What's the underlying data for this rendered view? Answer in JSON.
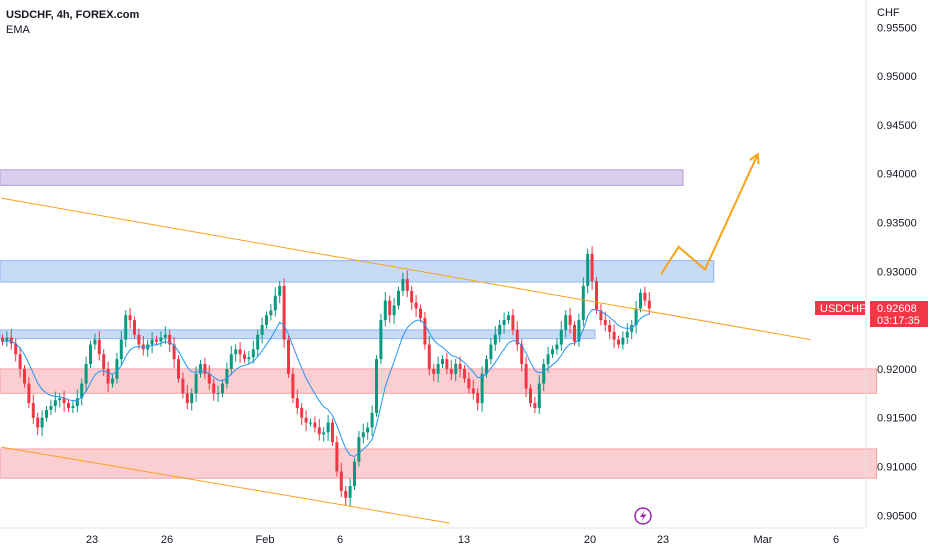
{
  "legend": {
    "symbol": "USDCHF, 4h, FOREX.com",
    "indicator": "EMA"
  },
  "currency": "CHF",
  "price_badge": {
    "symbol": "USDCHF",
    "price": "0.92608",
    "countdown": "03:17:35",
    "color": "#f23645"
  },
  "colors": {
    "bull": "#089981",
    "bear": "#f23645",
    "ema": "#2196f3",
    "trendline": "#f7a21b"
  },
  "chart_data": {
    "type": "candlestick",
    "symbol": "USDCHF",
    "timeframe": "4h",
    "y_range": [
      0.9037,
      0.9578
    ],
    "y_ticks": [
      "0.90500",
      "0.91000",
      "0.91500",
      "0.92000",
      "0.92500",
      "0.93000",
      "0.93500",
      "0.94000",
      "0.94500",
      "0.95000",
      "0.95500"
    ],
    "x_labels": [
      "23",
      "26",
      "Feb",
      "6",
      "13",
      "20",
      "23",
      "Mar",
      "6"
    ],
    "candles_close": [
      0.9228,
      0.9232,
      0.9226,
      0.9215,
      0.92,
      0.9185,
      0.9165,
      0.915,
      0.914,
      0.915,
      0.9158,
      0.9162,
      0.9168,
      0.917,
      0.9165,
      0.916,
      0.9162,
      0.917,
      0.9185,
      0.9205,
      0.9225,
      0.923,
      0.9215,
      0.92,
      0.9185,
      0.919,
      0.921,
      0.923,
      0.9255,
      0.925,
      0.9235,
      0.9225,
      0.922,
      0.9225,
      0.923,
      0.9228,
      0.9232,
      0.9235,
      0.9225,
      0.921,
      0.919,
      0.9175,
      0.9165,
      0.9175,
      0.9195,
      0.9205,
      0.9195,
      0.9185,
      0.9175,
      0.9175,
      0.9185,
      0.92,
      0.9215,
      0.922,
      0.9215,
      0.921,
      0.9212,
      0.922,
      0.9235,
      0.9245,
      0.9255,
      0.926,
      0.9275,
      0.9285,
      0.923,
      0.9195,
      0.917,
      0.916,
      0.915,
      0.9145,
      0.9145,
      0.914,
      0.9133,
      0.9135,
      0.9145,
      0.9125,
      0.9095,
      0.9075,
      0.9068,
      0.908,
      0.9105,
      0.913,
      0.9135,
      0.914,
      0.9155,
      0.921,
      0.925,
      0.927,
      0.9255,
      0.9265,
      0.928,
      0.9292,
      0.928,
      0.9268,
      0.9262,
      0.9252,
      0.9225,
      0.92,
      0.9195,
      0.9205,
      0.921,
      0.92,
      0.9195,
      0.9205,
      0.92,
      0.919,
      0.918,
      0.9175,
      0.9165,
      0.9195,
      0.921,
      0.9225,
      0.9235,
      0.9245,
      0.925,
      0.9255,
      0.924,
      0.9225,
      0.9205,
      0.918,
      0.9165,
      0.916,
      0.9185,
      0.9205,
      0.9215,
      0.922,
      0.9225,
      0.924,
      0.9255,
      0.9245,
      0.9228,
      0.925,
      0.9285,
      0.9318,
      0.929,
      0.926,
      0.925,
      0.9245,
      0.9238,
      0.923,
      0.9225,
      0.9232,
      0.9238,
      0.9245,
      0.9262,
      0.9278,
      0.927,
      0.9262
    ],
    "ema_period_note": "",
    "zones": [
      {
        "color": "#b39ddb",
        "top": 0.9404,
        "bottom": 0.9388,
        "x_end_index": 155
      },
      {
        "color": "#90b8f0",
        "top": 0.9311,
        "bottom": 0.9289,
        "x_end_index": 162
      },
      {
        "color": "#90b8f0",
        "top": 0.924,
        "bottom": 0.9231,
        "x_end_index": 135
      },
      {
        "color": "#f7a0a3",
        "top": 0.92,
        "bottom": 0.9175,
        "x_end_index": 199
      },
      {
        "color": "#f7a0a3",
        "top": 0.9118,
        "bottom": 0.9088,
        "x_end_index": 199
      }
    ],
    "trendlines": [
      {
        "from": [
          0,
          0.9375
        ],
        "to": [
          184,
          0.923
        ]
      },
      {
        "from": [
          0,
          0.912
        ],
        "to": [
          102,
          0.9042
        ]
      }
    ],
    "projection": [
      [
        150,
        0.9297
      ],
      [
        154,
        0.9325
      ],
      [
        160,
        0.9302
      ],
      [
        172,
        0.942
      ]
    ]
  }
}
